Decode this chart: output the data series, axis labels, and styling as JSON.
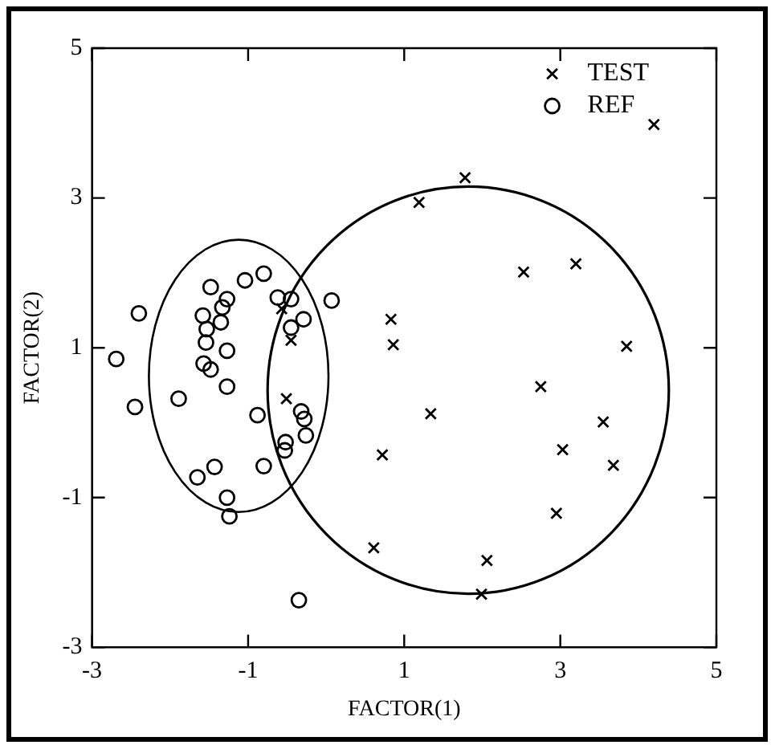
{
  "chart_data": {
    "type": "scatter",
    "xlabel": "FACTOR(1)",
    "ylabel": "FACTOR(2)",
    "xlim": [
      -3,
      5
    ],
    "ylim": [
      -3,
      5
    ],
    "xticks": [
      -3,
      -1,
      1,
      3,
      5
    ],
    "yticks": [
      -3,
      -1,
      1,
      3,
      5
    ],
    "grid": false,
    "legend": "top right",
    "series": [
      {
        "name": "TEST",
        "color": "#000000",
        "marker": "cross",
        "x": [
          4.2,
          1.78,
          1.19,
          2.53,
          3.2,
          0.83,
          0.86,
          3.85,
          2.75,
          3.55,
          3.03,
          3.68,
          0.72,
          2.95,
          0.61,
          2.06,
          1.99,
          -0.57,
          -0.45,
          -0.51
        ],
        "values": [
          3.98,
          3.27,
          2.94,
          2.01,
          2.12,
          1.38,
          1.04,
          1.02,
          0.48,
          0.01,
          -0.36,
          -0.57,
          -0.43,
          -1.21,
          -1.67,
          -1.84,
          -2.29,
          1.52,
          1.1,
          0.32
        ]
      },
      {
        "name": "REF",
        "color": "#000000",
        "marker": "circle",
        "x": [
          -2.69,
          -2.4,
          -2.45,
          -1.89,
          -1.48,
          -1.58,
          -1.53,
          -1.54,
          -1.57,
          -1.48,
          -1.33,
          -1.27,
          -1.35,
          -1.27,
          -1.27,
          -1.04,
          -0.8,
          -0.62,
          -0.45,
          -0.29,
          -0.45,
          0.07,
          -0.88,
          -0.32,
          -0.28,
          -0.26,
          -0.52,
          -0.53,
          -0.8,
          -1.43,
          -1.65,
          -1.27,
          -1.24,
          -0.35
        ],
        "values": [
          0.85,
          1.46,
          0.21,
          0.32,
          1.81,
          1.43,
          1.25,
          1.07,
          0.79,
          0.71,
          1.54,
          1.65,
          1.34,
          0.96,
          0.48,
          1.9,
          1.99,
          1.67,
          1.65,
          1.38,
          1.27,
          1.63,
          0.1,
          0.15,
          0.05,
          -0.17,
          -0.26,
          -0.37,
          -0.58,
          -0.59,
          -0.73,
          -1.0,
          -1.25,
          -2.37
        ]
      },
      {
        "color": "#000000",
        "marker": "cross",
        "x": [
          1.34
        ],
        "values": [
          0.12
        ]
      }
    ]
  }
}
